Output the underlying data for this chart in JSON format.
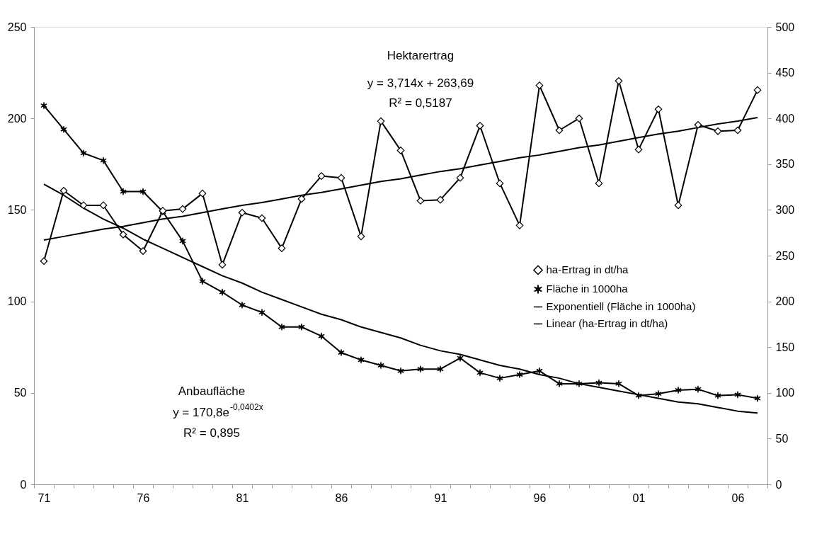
{
  "chart_data": {
    "type": "line",
    "categories": [
      "71",
      null,
      null,
      null,
      null,
      "76",
      null,
      null,
      null,
      null,
      "81",
      null,
      null,
      null,
      null,
      "86",
      null,
      null,
      null,
      null,
      "91",
      null,
      null,
      null,
      null,
      "96",
      null,
      null,
      null,
      null,
      "01",
      null,
      null,
      null,
      null,
      "06",
      null
    ],
    "annotations": [
      "Hektarertrag",
      "y = 3,714x + 263,69",
      "R² = 0,5187",
      "Anbaufläche",
      "y = 170,8e$^{-0,0402x}$",
      "R² = 0,895"
    ],
    "ylim": [
      0,
      250
    ],
    "yticks": [
      0,
      50,
      100,
      150,
      200,
      250
    ],
    "y2lim": [
      0,
      500
    ],
    "y2ticks": [
      0,
      50,
      100,
      150,
      200,
      250,
      300,
      350,
      400,
      450,
      500
    ],
    "legend": "right",
    "line_style": "solid",
    "series": [
      {
        "name": "ha-Ertrag in dt/ha",
        "color": "#000000",
        "axis": "y2",
        "marker": "diamond",
        "values": [
          244,
          321,
          305,
          305,
          273,
          255,
          299,
          301,
          318,
          240,
          297,
          291,
          258,
          312,
          337,
          335,
          271,
          397,
          365,
          310,
          311,
          335,
          392,
          329,
          283,
          436,
          387,
          400,
          329,
          441,
          366,
          410,
          305,
          393,
          386,
          387,
          431
        ]
      },
      {
        "name": "Fläche in 1000ha",
        "color": "#000000",
        "marker": "cross",
        "values": [
          207,
          194,
          181,
          177,
          160,
          160,
          149,
          133,
          111,
          105,
          98,
          94,
          86,
          86,
          81,
          72,
          68,
          65,
          62,
          63,
          63,
          69,
          61,
          58,
          60,
          62,
          55,
          55,
          55.5,
          55,
          48.5,
          49.5,
          51.5,
          52,
          48.5,
          49,
          47
        ]
      },
      {
        "name": "Exponentiell (Fläche in 1000ha)",
        "color": "#000000",
        "marker": "none",
        "values": [
          164,
          158,
          151,
          145,
          140,
          134,
          129,
          124,
          119,
          114,
          110,
          105,
          101,
          97,
          93,
          90,
          86,
          83,
          80,
          76,
          73,
          71,
          68,
          65,
          63,
          60,
          58,
          55,
          53,
          51,
          49,
          47,
          45,
          44,
          42,
          40,
          39
        ]
      },
      {
        "name": "Linear (ha-Ertrag in dt/ha)",
        "color": "#000000",
        "axis": "y2",
        "marker": "none",
        "values": [
          267,
          271,
          275,
          279,
          282,
          286,
          290,
          293,
          297,
          301,
          305,
          308,
          312,
          316,
          319,
          323,
          327,
          331,
          334,
          338,
          342,
          345,
          349,
          353,
          357,
          360,
          364,
          368,
          371,
          375,
          379,
          383,
          386,
          390,
          394,
          397,
          401
        ]
      }
    ]
  }
}
